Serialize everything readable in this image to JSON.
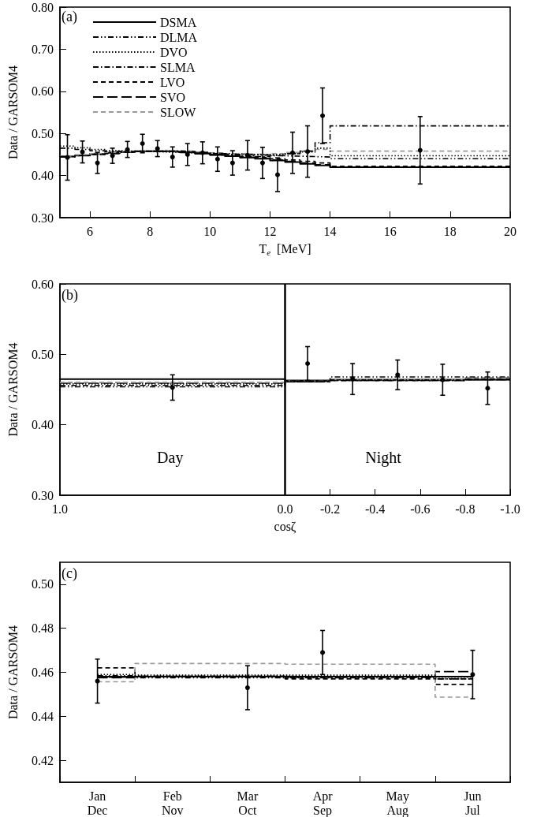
{
  "chart_data": [
    {
      "type": "step",
      "xlabel": "T$_{e}$  [MeV]",
      "ylabel": "Data / GARSOM4",
      "annotations": [
        "(a)"
      ],
      "xlim": [
        5,
        20
      ],
      "ylim": [
        0.3,
        0.8
      ],
      "xticks": [
        6,
        8,
        10,
        12,
        14,
        16,
        18,
        20
      ],
      "yticks": [
        {
          "value": 0.3,
          "label": "0.30"
        },
        {
          "value": 0.4,
          "label": "0.40"
        },
        {
          "value": 0.5,
          "label": "0.50"
        },
        {
          "value": 0.6,
          "label": "0.60"
        },
        {
          "value": 0.7,
          "label": "0.70"
        },
        {
          "value": 0.8,
          "label": "0.80"
        }
      ],
      "grid": false,
      "legend": "top left",
      "series": [
        {
          "name": "DSMA",
          "color": "#000000",
          "line_style": "solid",
          "x": [
            5,
            5.5,
            6,
            6.5,
            7,
            7.5,
            8,
            8.5,
            9,
            9.5,
            10,
            10.5,
            11,
            11.5,
            12,
            12.5,
            13,
            13.5,
            14,
            20
          ],
          "values": [
            0.445,
            0.448,
            0.451,
            0.454,
            0.456,
            0.458,
            0.458,
            0.457,
            0.455,
            0.452,
            0.449,
            0.446,
            0.443,
            0.44,
            0.436,
            0.432,
            0.428,
            0.424,
            0.42,
            0.42
          ]
        },
        {
          "name": "DLMA",
          "color": "#000000",
          "line_style": "dashdotdot",
          "x": [
            5,
            5.5,
            6,
            6.5,
            7,
            7.5,
            8,
            8.5,
            9,
            9.5,
            10,
            10.5,
            11,
            11.5,
            12,
            12.5,
            13,
            13.5,
            14,
            20
          ],
          "values": [
            0.465,
            0.462,
            0.459,
            0.457,
            0.457,
            0.457,
            0.457,
            0.456,
            0.455,
            0.453,
            0.452,
            0.45,
            0.449,
            0.448,
            0.447,
            0.446,
            0.445,
            0.444,
            0.44,
            0.44
          ]
        },
        {
          "name": "DVO",
          "color": "#000000",
          "line_style": "dotted",
          "x": [
            5,
            5.5,
            6,
            6.5,
            7,
            7.5,
            8,
            8.5,
            9,
            9.5,
            10,
            10.5,
            11,
            11.5,
            12,
            12.5,
            13,
            13.5,
            14,
            20
          ],
          "values": [
            0.47,
            0.466,
            0.462,
            0.459,
            0.458,
            0.457,
            0.456,
            0.455,
            0.454,
            0.453,
            0.452,
            0.451,
            0.45,
            0.45,
            0.45,
            0.452,
            0.456,
            0.465,
            0.447,
            0.447
          ]
        },
        {
          "name": "SLMA",
          "color": "#000000",
          "line_style": "dashdot",
          "x": [
            5,
            5.5,
            6,
            6.5,
            7,
            7.5,
            8,
            8.5,
            9,
            9.5,
            10,
            10.5,
            11,
            11.5,
            12,
            12.5,
            13,
            13.5,
            14,
            20
          ],
          "values": [
            0.445,
            0.447,
            0.45,
            0.452,
            0.455,
            0.457,
            0.458,
            0.458,
            0.457,
            0.455,
            0.452,
            0.45,
            0.447,
            0.445,
            0.447,
            0.452,
            0.458,
            0.478,
            0.518,
            0.518
          ]
        },
        {
          "name": "LVO",
          "color": "#000000",
          "line_style": "dashed",
          "x": [
            5,
            5.5,
            6,
            6.5,
            7,
            7.5,
            8,
            8.5,
            9,
            9.5,
            10,
            10.5,
            11,
            11.5,
            12,
            12.5,
            13,
            13.5,
            14,
            20
          ],
          "values": [
            0.446,
            0.449,
            0.452,
            0.455,
            0.457,
            0.458,
            0.459,
            0.458,
            0.456,
            0.453,
            0.45,
            0.447,
            0.445,
            0.443,
            0.44,
            0.437,
            0.434,
            0.43,
            0.422,
            0.422
          ]
        },
        {
          "name": "SVO",
          "color": "#000000",
          "line_style": "longdash",
          "x": [
            5,
            5.5,
            6,
            6.5,
            7,
            7.5,
            8,
            8.5,
            9,
            9.5,
            10,
            10.5,
            11,
            11.5,
            12,
            12.5,
            13,
            13.5,
            14,
            20
          ],
          "values": [
            0.444,
            0.447,
            0.45,
            0.453,
            0.456,
            0.458,
            0.458,
            0.457,
            0.455,
            0.452,
            0.449,
            0.446,
            0.443,
            0.44,
            0.437,
            0.434,
            0.43,
            0.426,
            0.42,
            0.42
          ]
        },
        {
          "name": "SLOW",
          "color": "#999999",
          "line_style": "dashed",
          "x": [
            5,
            5.5,
            6,
            6.5,
            7,
            7.5,
            8,
            8.5,
            9,
            9.5,
            10,
            10.5,
            11,
            11.5,
            12,
            12.5,
            13,
            13.5,
            14,
            20
          ],
          "values": [
            0.446,
            0.449,
            0.452,
            0.455,
            0.457,
            0.459,
            0.46,
            0.459,
            0.458,
            0.456,
            0.454,
            0.452,
            0.451,
            0.45,
            0.452,
            0.455,
            0.458,
            0.462,
            0.458,
            0.458
          ]
        },
        {
          "type": "scatter",
          "color": "#000000",
          "marker": "circle",
          "x": [
            5.25,
            5.75,
            6.25,
            6.75,
            7.25,
            7.75,
            8.25,
            8.75,
            9.25,
            9.75,
            10.25,
            10.75,
            11.25,
            11.75,
            12.25,
            12.75,
            13.25,
            13.75,
            17
          ],
          "values": [
            0.443,
            0.456,
            0.43,
            0.447,
            0.462,
            0.476,
            0.464,
            0.444,
            0.45,
            0.454,
            0.439,
            0.43,
            0.448,
            0.43,
            0.402,
            0.454,
            0.457,
            0.542,
            0.46
          ],
          "errors": [
            0.054,
            0.026,
            0.025,
            0.018,
            0.019,
            0.022,
            0.019,
            0.024,
            0.026,
            0.026,
            0.029,
            0.029,
            0.035,
            0.037,
            0.04,
            0.049,
            0.061,
            0.066,
            0.08
          ]
        }
      ]
    },
    {
      "type": "step",
      "xlabel": "cosζ",
      "ylabel": "Data / GARSOM4",
      "annotations": [
        "(b)",
        "Day",
        "Night"
      ],
      "xlim": [
        1,
        -1
      ],
      "ylim": [
        0.3,
        0.6
      ],
      "xticks": [
        {
          "value": 1,
          "label": "1.0"
        },
        {
          "value": 0,
          "label": "0.0"
        },
        -0.2,
        -0.4,
        -0.6,
        -0.8,
        {
          "value": -1,
          "label": "-1.0"
        }
      ],
      "yticks": [
        {
          "value": 0.3,
          "label": "0.30"
        },
        {
          "value": 0.4,
          "label": "0.40"
        },
        {
          "value": 0.5,
          "label": "0.50"
        },
        {
          "value": 0.6,
          "label": "0.60"
        }
      ],
      "grid": false,
      "ref_lines": [
        {
          "axis": "x",
          "value": 0,
          "color": "#000000"
        }
      ],
      "series": [
        {
          "color": "#000000",
          "line_style": "solid",
          "x": [
            1,
            0,
            -0.2,
            -0.4,
            -0.6,
            -0.8,
            -1
          ],
          "values": [
            0.465,
            0.463,
            0.464,
            0.464,
            0.464,
            0.464,
            0.464
          ]
        },
        {
          "color": "#000000",
          "line_style": "dashdotdot",
          "x": [
            1,
            0,
            -0.2,
            -0.4,
            -0.6,
            -0.8,
            -1
          ],
          "values": [
            0.454,
            0.462,
            0.468,
            0.468,
            0.468,
            0.468,
            0.468
          ]
        },
        {
          "color": "#000000",
          "line_style": "dotted",
          "x": [
            1,
            0,
            -0.2,
            -0.4,
            -0.6,
            -0.8,
            -1
          ],
          "values": [
            0.458,
            0.462,
            0.464,
            0.464,
            0.464,
            0.465,
            0.465
          ]
        },
        {
          "color": "#000000",
          "line_style": "dashdot",
          "x": [
            1,
            0,
            -0.2,
            -0.4,
            -0.6,
            -0.8,
            -1
          ],
          "values": [
            0.456,
            0.461,
            0.463,
            0.463,
            0.463,
            0.464,
            0.464
          ]
        },
        {
          "color": "#000000",
          "line_style": "dashed",
          "x": [
            1,
            0,
            -0.2,
            -0.4,
            -0.6,
            -0.8,
            -1
          ],
          "values": [
            0.46,
            0.462,
            0.463,
            0.463,
            0.463,
            0.465,
            0.465
          ]
        },
        {
          "color": "#000000",
          "line_style": "longdash",
          "x": [
            1,
            0,
            -0.2,
            -0.4,
            -0.6,
            -0.8,
            -1
          ],
          "values": [
            0.459,
            0.461,
            0.463,
            0.463,
            0.463,
            0.464,
            0.464
          ]
        },
        {
          "color": "#999999",
          "line_style": "dashed",
          "x": [
            1,
            0,
            -0.2,
            -0.4,
            -0.6,
            -0.8,
            -1
          ],
          "values": [
            0.46,
            0.462,
            0.464,
            0.464,
            0.464,
            0.467,
            0.467
          ]
        },
        {
          "type": "scatter",
          "color": "#000000",
          "marker": "circle",
          "x": [
            0.5,
            -0.1,
            -0.3,
            -0.5,
            -0.7,
            -0.9
          ],
          "values": [
            0.453,
            0.487,
            0.465,
            0.471,
            0.464,
            0.452
          ],
          "errors": [
            0.018,
            0.024,
            0.022,
            0.021,
            0.022,
            0.023
          ]
        }
      ]
    },
    {
      "type": "step",
      "ylabel": "Data / GARSOM4",
      "annotations": [
        "(c)"
      ],
      "categories": [
        "Jan\nDec",
        "Feb\nNov",
        "Mar\nOct",
        "Apr\nSep",
        "May\nAug",
        "Jun\nJul"
      ],
      "ylim": [
        0.41,
        0.51
      ],
      "yticks": [
        {
          "value": 0.42,
          "label": "0.42"
        },
        {
          "value": 0.44,
          "label": "0.44"
        },
        {
          "value": 0.46,
          "label": "0.46"
        },
        {
          "value": 0.48,
          "label": "0.48"
        },
        {
          "value": 0.5,
          "label": "0.50"
        }
      ],
      "grid": false,
      "series": [
        {
          "color": "#000000",
          "line_style": "solid",
          "values": [
            0.458,
            0.458,
            0.458,
            0.458,
            0.458,
            0.458
          ]
        },
        {
          "color": "#000000",
          "line_style": "dashdotdot",
          "values": [
            0.4585,
            0.4575,
            0.4575,
            0.4575,
            0.4575,
            0.457
          ]
        },
        {
          "color": "#000000",
          "line_style": "dotted",
          "values": [
            0.459,
            0.4587,
            0.4587,
            0.4587,
            0.4587,
            0.4578
          ]
        },
        {
          "color": "#000000",
          "line_style": "dashdot",
          "values": [
            0.4578,
            0.4582,
            0.4582,
            0.458,
            0.458,
            0.457
          ]
        },
        {
          "color": "#000000",
          "line_style": "dashed",
          "values": [
            0.462,
            0.458,
            0.458,
            0.457,
            0.457,
            0.4545
          ]
        },
        {
          "color": "#000000",
          "line_style": "longdash",
          "values": [
            0.4575,
            0.4582,
            0.4582,
            0.4577,
            0.4577,
            0.4603
          ]
        },
        {
          "color": "#999999",
          "line_style": "dashed",
          "values": [
            0.4557,
            0.464,
            0.464,
            0.4637,
            0.4637,
            0.4487
          ]
        },
        {
          "type": "scatter",
          "color": "#000000",
          "marker": "circle",
          "x": [
            "Jan\nDec",
            "Mar\nOct",
            "Apr\nSep",
            "Jun\nJul"
          ],
          "values": [
            0.456,
            0.453,
            0.469,
            0.459
          ],
          "errors": [
            0.01,
            0.01,
            0.01,
            0.011
          ]
        }
      ]
    }
  ]
}
